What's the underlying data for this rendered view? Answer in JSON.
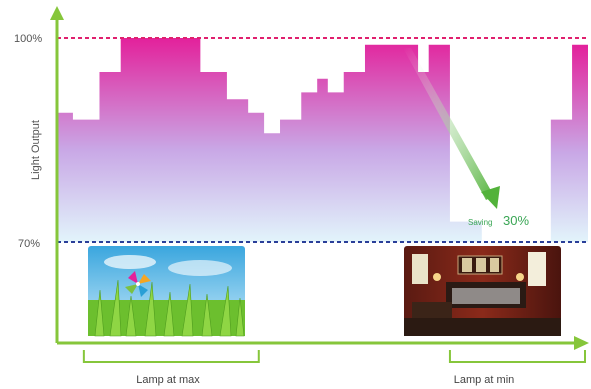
{
  "chart_data": {
    "type": "area",
    "ylabel": "Light Output",
    "yticks": [
      "100%",
      "70%"
    ],
    "ylim": [
      70,
      100
    ],
    "reference_lines": [
      {
        "label": "100%",
        "value": 100,
        "color": "#e0206e",
        "style": "dashed"
      },
      {
        "label": "70%",
        "value": 70,
        "color": "#2a3f99",
        "style": "dashed"
      }
    ],
    "steps": [
      {
        "start": 0,
        "value": 89
      },
      {
        "start": 3,
        "value": 88
      },
      {
        "start": 8,
        "value": 95
      },
      {
        "start": 12,
        "value": 100
      },
      {
        "start": 27,
        "value": 95
      },
      {
        "start": 32,
        "value": 91
      },
      {
        "start": 36,
        "value": 89
      },
      {
        "start": 39,
        "value": 86
      },
      {
        "start": 42,
        "value": 88
      },
      {
        "start": 46,
        "value": 92
      },
      {
        "start": 49,
        "value": 94
      },
      {
        "start": 51,
        "value": 92
      },
      {
        "start": 54,
        "value": 95
      },
      {
        "start": 58,
        "value": 99
      },
      {
        "start": 68,
        "value": 95
      },
      {
        "start": 70,
        "value": 99
      },
      {
        "start": 74,
        "value": 73
      },
      {
        "start": 80,
        "value": null
      },
      {
        "start": 93,
        "value": 88
      },
      {
        "start": 97,
        "value": 99
      }
    ],
    "x_end": 100,
    "annotation": {
      "small": "Saving",
      "big": "30%"
    },
    "captions": [
      {
        "text": "Lamp at max",
        "from": 6,
        "to": 38
      },
      {
        "text": "Lamp at min",
        "from": 74,
        "to": 100
      }
    ],
    "colors": {
      "axis": "#86c63b",
      "fill_top": "#e3219b",
      "fill_mid": "#c9a8e6",
      "fill_bottom": "#e2f4fb",
      "arrow": "#52b23a"
    }
  }
}
